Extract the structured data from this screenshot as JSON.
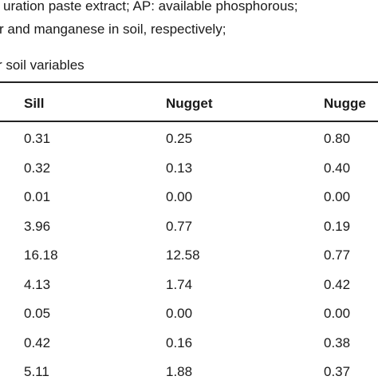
{
  "notes": {
    "line1": "uration paste extract; AP: available phosphorous;",
    "line2": "r and manganese in soil, respectively;",
    "caption": "r soil variables"
  },
  "table": {
    "headers": [
      "Sill",
      "Nugget",
      "Nugge"
    ],
    "rows": [
      [
        "0.31",
        "0.25",
        "0.80"
      ],
      [
        "0.32",
        "0.13",
        "0.40"
      ],
      [
        "0.01",
        "0.00",
        "0.00"
      ],
      [
        "3.96",
        "0.77",
        "0.19"
      ],
      [
        "16.18",
        "12.58",
        "0.77"
      ],
      [
        "4.13",
        "1.74",
        "0.42"
      ],
      [
        "0.05",
        "0.00",
        "0.00"
      ],
      [
        "0.42",
        "0.16",
        "0.38"
      ],
      [
        "5.11",
        "1.88",
        "0.37"
      ]
    ]
  }
}
